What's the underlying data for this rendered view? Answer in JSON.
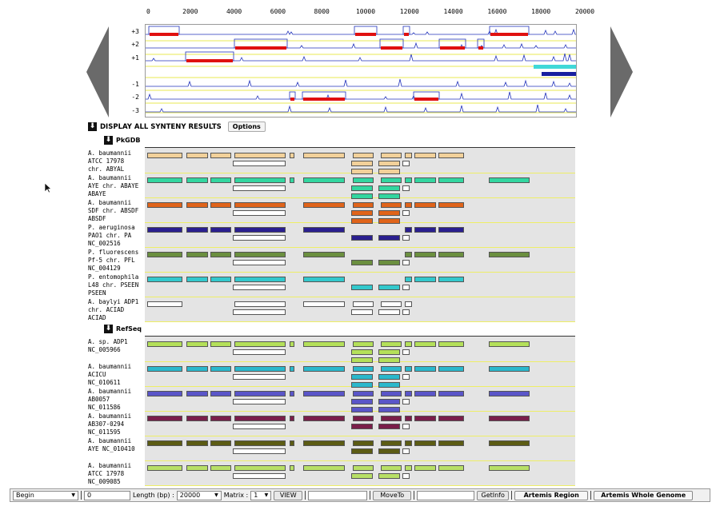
{
  "ruler": {
    "ticks": [
      "0",
      "2000",
      "4000",
      "6000",
      "8000",
      "10000",
      "12000",
      "14000",
      "16000",
      "18000",
      "20000"
    ],
    "max": 20000
  },
  "frames": {
    "labels": [
      "+3",
      "+2",
      "+1",
      "-1",
      "-2",
      "-3"
    ]
  },
  "header": {
    "title": "DISPLAY ALL SYNTENY RESULTS",
    "options_label": "Options"
  },
  "pkgdb": {
    "title": "PkGDB",
    "rows": [
      {
        "label": "A. baumannii\nATCC 17978\nchr. ABYAL",
        "color": "#f2d19a"
      },
      {
        "label": "A. baumannii\nAYE chr. ABAYE\nABAYE",
        "color": "#33d6a0"
      },
      {
        "label": "A. baumannii\nSDF chr. ABSDF\nABSDF",
        "color": "#e0641a"
      },
      {
        "label": "P. aeruginosa\nPAO1 chr. PA\nNC_002516",
        "color": "#2a1f8f"
      },
      {
        "label": "P. fluorescens\nPf-5 chr. PFL\nNC_004129",
        "color": "#6b8f3f"
      },
      {
        "label": "P. entomophila\nL48 chr. PSEEN\nPSEEN",
        "color": "#33c8cc"
      },
      {
        "label": "A. baylyi ADP1\nchr. ACIAD\nACIAD",
        "color": "#ffffff"
      }
    ]
  },
  "refseq": {
    "title": "RefSeq",
    "rows": [
      {
        "label": "A. sp. ADP1\nNC_005966",
        "color": "#b4e05a"
      },
      {
        "label": "A. baumannii\nACICU\nNC_010611",
        "color": "#2bb8cc"
      },
      {
        "label": "A. baumannii\nAB0057\nNC_011586",
        "color": "#5a55c8"
      },
      {
        "label": "A. baumannii\nAB307-0294\nNC_011595",
        "color": "#7a1e4a"
      },
      {
        "label": "A. baumannii\nAYE NC_010410",
        "color": "#5c5c14"
      },
      {
        "label": "A. baumannii\nATCC 17978\nNC_009085",
        "color": "#b8e066"
      }
    ]
  },
  "toolbar": {
    "begin_label": "Begin",
    "start_value": "0",
    "length_label": "Length (bp) :",
    "length_value": "20000",
    "matrix_label": "Matrix :",
    "matrix_value": "1",
    "view_label": "VIEW",
    "moveto_label": "MoveTo",
    "getinfo_label": "GetInfo",
    "artemis_region_label": "Artemis Region",
    "artemis_genome_label": "Artemis Whole Genome"
  },
  "icons": {
    "nav_left": "arrow-left-icon",
    "nav_right": "arrow-right-icon",
    "collapse": "arrow-down-icon",
    "cursor": "mouse-cursor-icon"
  }
}
